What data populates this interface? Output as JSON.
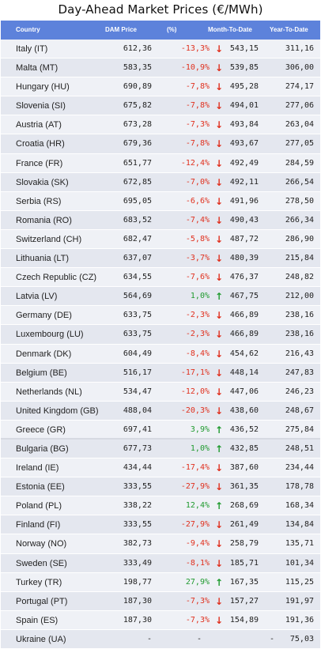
{
  "title": "Day-Ahead Market Prices (€/MWh)",
  "columns": {
    "country": "Country",
    "dam": "DAM Price",
    "pct": "(%)",
    "mtd": "Month-To-Date",
    "ytd": "Year-To-Date"
  },
  "colors": {
    "header": "#5d82db",
    "down": "#e0301e",
    "up": "#1f9a2e"
  },
  "rows": [
    {
      "country": "Italy (IT)",
      "dam": "612,36",
      "pct": "-13,3%",
      "dir": "down",
      "mtd": "543,15",
      "ytd": "311,16"
    },
    {
      "country": "Malta (MT)",
      "dam": "583,35",
      "pct": "-10,9%",
      "dir": "down",
      "mtd": "539,85",
      "ytd": "306,00"
    },
    {
      "country": "Hungary (HU)",
      "dam": "690,89",
      "pct": "-7,8%",
      "dir": "down",
      "mtd": "495,28",
      "ytd": "274,17"
    },
    {
      "country": "Slovenia (SI)",
      "dam": "675,82",
      "pct": "-7,8%",
      "dir": "down",
      "mtd": "494,01",
      "ytd": "277,06"
    },
    {
      "country": "Austria (AT)",
      "dam": "673,28",
      "pct": "-7,3%",
      "dir": "down",
      "mtd": "493,84",
      "ytd": "263,04"
    },
    {
      "country": "Croatia (HR)",
      "dam": "679,36",
      "pct": "-7,8%",
      "dir": "down",
      "mtd": "493,67",
      "ytd": "277,05"
    },
    {
      "country": "France (FR)",
      "dam": "651,77",
      "pct": "-12,4%",
      "dir": "down",
      "mtd": "492,49",
      "ytd": "284,59"
    },
    {
      "country": "Slovakia (SK)",
      "dam": "672,85",
      "pct": "-7,0%",
      "dir": "down",
      "mtd": "492,11",
      "ytd": "266,54"
    },
    {
      "country": "Serbia (RS)",
      "dam": "695,05",
      "pct": "-6,6%",
      "dir": "down",
      "mtd": "491,96",
      "ytd": "278,50"
    },
    {
      "country": "Romania (RO)",
      "dam": "683,52",
      "pct": "-7,4%",
      "dir": "down",
      "mtd": "490,43",
      "ytd": "266,34"
    },
    {
      "country": "Switzerland (CH)",
      "dam": "682,47",
      "pct": "-5,8%",
      "dir": "down",
      "mtd": "487,72",
      "ytd": "286,90"
    },
    {
      "country": "Lithuania (LT)",
      "dam": "637,07",
      "pct": "-3,7%",
      "dir": "down",
      "mtd": "480,39",
      "ytd": "215,84"
    },
    {
      "country": "Czech Republic (CZ)",
      "dam": "634,55",
      "pct": "-7,6%",
      "dir": "down",
      "mtd": "476,37",
      "ytd": "248,82"
    },
    {
      "country": "Latvia (LV)",
      "dam": "564,69",
      "pct": "1,0%",
      "dir": "up",
      "mtd": "467,75",
      "ytd": "212,00"
    },
    {
      "country": "Germany (DE)",
      "dam": "633,75",
      "pct": "-2,3%",
      "dir": "down",
      "mtd": "466,89",
      "ytd": "238,16"
    },
    {
      "country": "Luxembourg (LU)",
      "dam": "633,75",
      "pct": "-2,3%",
      "dir": "down",
      "mtd": "466,89",
      "ytd": "238,16"
    },
    {
      "country": "Denmark (DK)",
      "dam": "604,49",
      "pct": "-8,4%",
      "dir": "down",
      "mtd": "454,62",
      "ytd": "216,43"
    },
    {
      "country": "Belgium (BE)",
      "dam": "516,17",
      "pct": "-17,1%",
      "dir": "down",
      "mtd": "448,14",
      "ytd": "247,83"
    },
    {
      "country": "Netherlands (NL)",
      "dam": "534,47",
      "pct": "-12,0%",
      "dir": "down",
      "mtd": "447,06",
      "ytd": "246,23"
    },
    {
      "country": "United Kingdom (GB)",
      "dam": "488,04",
      "pct": "-20,3%",
      "dir": "down",
      "mtd": "438,60",
      "ytd": "248,67"
    },
    {
      "country": "Greece (GR)",
      "dam": "697,41",
      "pct": "3,9%",
      "dir": "up",
      "mtd": "436,52",
      "ytd": "275,84"
    },
    {
      "country": "Bulgaria (BG)",
      "dam": "677,73",
      "pct": "1,0%",
      "dir": "up",
      "mtd": "432,85",
      "ytd": "248,51"
    },
    {
      "country": "Ireland (IE)",
      "dam": "434,44",
      "pct": "-17,4%",
      "dir": "down",
      "mtd": "387,60",
      "ytd": "234,44"
    },
    {
      "country": "Estonia (EE)",
      "dam": "333,55",
      "pct": "-27,9%",
      "dir": "down",
      "mtd": "361,35",
      "ytd": "178,78"
    },
    {
      "country": "Poland (PL)",
      "dam": "338,22",
      "pct": "12,4%",
      "dir": "up",
      "mtd": "268,69",
      "ytd": "168,34"
    },
    {
      "country": "Finland (FI)",
      "dam": "333,55",
      "pct": "-27,9%",
      "dir": "down",
      "mtd": "261,49",
      "ytd": "134,84"
    },
    {
      "country": "Norway (NO)",
      "dam": "382,73",
      "pct": "-9,4%",
      "dir": "down",
      "mtd": "258,79",
      "ytd": "135,71"
    },
    {
      "country": "Sweden (SE)",
      "dam": "333,49",
      "pct": "-8,1%",
      "dir": "down",
      "mtd": "185,71",
      "ytd": "101,34"
    },
    {
      "country": "Turkey (TR)",
      "dam": "198,77",
      "pct": "27,9%",
      "dir": "up",
      "mtd": "167,35",
      "ytd": "115,25"
    },
    {
      "country": "Portugal (PT)",
      "dam": "187,30",
      "pct": "-7,3%",
      "dir": "down",
      "mtd": "157,27",
      "ytd": "191,97"
    },
    {
      "country": "Spain (ES)",
      "dam": "187,30",
      "pct": "-7,3%",
      "dir": "down",
      "mtd": "154,89",
      "ytd": "191,36"
    },
    {
      "country": "Ukraine (UA)",
      "dam": "-",
      "pct": "-",
      "dir": "none",
      "mtd": "-",
      "ytd": "75,03"
    }
  ]
}
